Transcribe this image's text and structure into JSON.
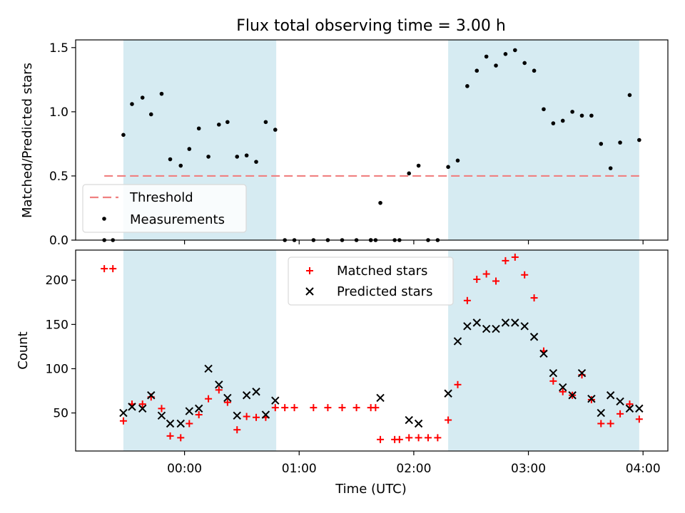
{
  "chart_data": [
    {
      "type": "scatter",
      "title": "Flux total observing time = 3.00 h",
      "ylabel": "Matched/Predicted stars",
      "ylim": [
        0,
        1.56
      ],
      "yticks": [
        0.0,
        0.5,
        1.0,
        1.5
      ],
      "ytick_labels": [
        "0.0",
        "0.5",
        "1.0",
        "1.5"
      ],
      "shaded_intervals_minutes": [
        [
          -32,
          48
        ],
        [
          138,
          238
        ]
      ],
      "shade_color": "#add8e6",
      "threshold": {
        "name": "Threshold",
        "value": 0.5,
        "color": "#f08080",
        "x_range_minutes": [
          -42,
          238
        ]
      },
      "legend": {
        "position": "lower-left",
        "entries": [
          "Threshold",
          "Measurements"
        ]
      },
      "series": [
        {
          "name": "Measurements",
          "marker": "dot",
          "color": "#000000",
          "points": [
            [
              -42,
              0.0
            ],
            [
              -37.5,
              0.0
            ],
            [
              -32,
              0.82
            ],
            [
              -27.5,
              1.06
            ],
            [
              -22,
              1.11
            ],
            [
              -17.5,
              0.98
            ],
            [
              -12,
              1.14
            ],
            [
              -7.5,
              0.63
            ],
            [
              -2,
              0.58
            ],
            [
              2.5,
              0.71
            ],
            [
              7.5,
              0.87
            ],
            [
              12.5,
              0.65
            ],
            [
              18,
              0.9
            ],
            [
              22.5,
              0.92
            ],
            [
              27.5,
              0.65
            ],
            [
              32.5,
              0.66
            ],
            [
              37.5,
              0.61
            ],
            [
              42.5,
              0.92
            ],
            [
              47.5,
              0.86
            ],
            [
              52.5,
              0.0
            ],
            [
              57.5,
              0.0
            ],
            [
              67.5,
              0.0
            ],
            [
              75,
              0.0
            ],
            [
              82.5,
              0.0
            ],
            [
              90,
              0.0
            ],
            [
              97.5,
              0.0
            ],
            [
              100,
              0.0
            ],
            [
              97.5,
              0.0
            ],
            [
              102.5,
              0.29
            ],
            [
              110,
              0.0
            ],
            [
              112.5,
              0.0
            ],
            [
              117.5,
              0.52
            ],
            [
              122.5,
              0.58
            ],
            [
              127.5,
              0.0
            ],
            [
              132.5,
              0.0
            ],
            [
              138,
              0.57
            ],
            [
              143,
              0.62
            ],
            [
              148,
              1.2
            ],
            [
              153,
              1.32
            ],
            [
              158,
              1.43
            ],
            [
              163,
              1.36
            ],
            [
              168,
              1.45
            ],
            [
              173,
              1.48
            ],
            [
              178,
              1.38
            ],
            [
              183,
              1.32
            ],
            [
              188,
              1.02
            ],
            [
              193,
              0.91
            ],
            [
              198,
              0.93
            ],
            [
              203,
              1.0
            ],
            [
              208,
              0.97
            ],
            [
              213,
              0.97
            ],
            [
              218,
              0.75
            ],
            [
              223,
              0.56
            ],
            [
              228,
              0.76
            ],
            [
              233,
              1.13
            ],
            [
              238,
              0.78
            ]
          ]
        }
      ]
    },
    {
      "type": "scatter",
      "xlabel": "Time (UTC)",
      "ylabel": "Count",
      "ylim": [
        7,
        234
      ],
      "yticks": [
        50,
        100,
        150,
        200
      ],
      "ytick_labels": [
        "50",
        "100",
        "150",
        "200"
      ],
      "xlim_minutes": [
        -57,
        253
      ],
      "xticks_minutes": [
        0,
        60,
        120,
        180,
        240
      ],
      "xtick_labels": [
        "00:00",
        "01:00",
        "02:00",
        "03:00",
        "04:00"
      ],
      "shaded_intervals_minutes": [
        [
          -32,
          48
        ],
        [
          138,
          238
        ]
      ],
      "legend": {
        "position": "upper-center",
        "entries": [
          "Matched stars",
          "Predicted stars"
        ]
      },
      "series": [
        {
          "name": "Matched stars",
          "marker": "plus",
          "color": "#ff0000",
          "points": [
            [
              -42,
              213
            ],
            [
              -37.5,
              213
            ],
            [
              -32,
              41
            ],
            [
              -27.5,
              60
            ],
            [
              -22,
              60
            ],
            [
              -17.5,
              68
            ],
            [
              -12,
              55
            ],
            [
              -7.5,
              24
            ],
            [
              -2,
              22
            ],
            [
              2.5,
              38
            ],
            [
              7.5,
              48
            ],
            [
              12.5,
              66
            ],
            [
              18,
              76
            ],
            [
              22.5,
              62
            ],
            [
              27.5,
              31
            ],
            [
              32.5,
              46
            ],
            [
              37.5,
              45
            ],
            [
              42.5,
              45
            ],
            [
              47.5,
              56
            ],
            [
              52.5,
              56
            ],
            [
              57.5,
              56
            ],
            [
              67.5,
              56
            ],
            [
              75,
              56
            ],
            [
              82.5,
              56
            ],
            [
              90,
              56
            ],
            [
              97.5,
              56
            ],
            [
              100,
              56
            ],
            [
              102.5,
              20
            ],
            [
              110,
              20
            ],
            [
              112.5,
              20
            ],
            [
              117.5,
              22
            ],
            [
              122.5,
              22
            ],
            [
              127.5,
              22
            ],
            [
              132.5,
              22
            ],
            [
              138,
              42
            ],
            [
              143,
              82
            ],
            [
              148,
              177
            ],
            [
              153,
              201
            ],
            [
              158,
              207
            ],
            [
              163,
              199
            ],
            [
              168,
              222
            ],
            [
              173,
              226
            ],
            [
              178,
              206
            ],
            [
              183,
              180
            ],
            [
              188,
              120
            ],
            [
              193,
              86
            ],
            [
              198,
              74
            ],
            [
              203,
              70
            ],
            [
              208,
              93
            ],
            [
              213,
              65
            ],
            [
              218,
              38
            ],
            [
              223,
              38
            ],
            [
              228,
              49
            ],
            [
              233,
              60
            ],
            [
              238,
              43
            ]
          ]
        },
        {
          "name": "Predicted stars",
          "marker": "x",
          "color": "#000000",
          "points": [
            [
              -32,
              50
            ],
            [
              -27.5,
              57
            ],
            [
              -22,
              55
            ],
            [
              -17.5,
              70
            ],
            [
              -12,
              47
            ],
            [
              -7.5,
              38
            ],
            [
              -2,
              38
            ],
            [
              2.5,
              52
            ],
            [
              7.5,
              55
            ],
            [
              12.5,
              100
            ],
            [
              18,
              82
            ],
            [
              22.5,
              67
            ],
            [
              27.5,
              47
            ],
            [
              32.5,
              70
            ],
            [
              37.5,
              74
            ],
            [
              42.5,
              48
            ],
            [
              47.5,
              64
            ],
            [
              102.5,
              67
            ],
            [
              117.5,
              42
            ],
            [
              122.5,
              38
            ],
            [
              138,
              72
            ],
            [
              143,
              131
            ],
            [
              148,
              148
            ],
            [
              153,
              152
            ],
            [
              158,
              145
            ],
            [
              163,
              145
            ],
            [
              168,
              152
            ],
            [
              173,
              152
            ],
            [
              178,
              148
            ],
            [
              183,
              136
            ],
            [
              188,
              117
            ],
            [
              193,
              95
            ],
            [
              198,
              79
            ],
            [
              203,
              70
            ],
            [
              208,
              95
            ],
            [
              213,
              66
            ],
            [
              218,
              50
            ],
            [
              223,
              70
            ],
            [
              228,
              63
            ],
            [
              233,
              55
            ],
            [
              238,
              55
            ]
          ]
        }
      ]
    }
  ]
}
